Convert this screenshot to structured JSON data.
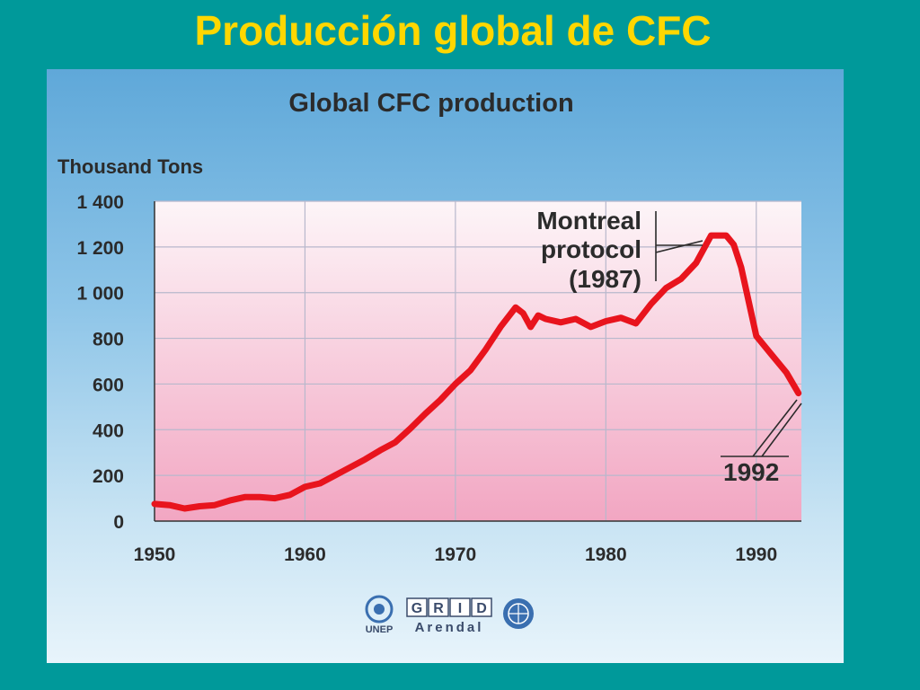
{
  "slide": {
    "title": "Producción global de CFC"
  },
  "chart_data": {
    "type": "line",
    "title": "Global CFC production",
    "ylabel": "Thousand Tons",
    "xlabel": "",
    "xlim": [
      1950,
      1993
    ],
    "ylim": [
      0,
      1400
    ],
    "x_ticks": [
      1950,
      1960,
      1970,
      1980,
      1990
    ],
    "x_tick_labels": [
      "1950",
      "1960",
      "1970",
      "1980",
      "1990"
    ],
    "y_ticks": [
      0,
      200,
      400,
      600,
      800,
      1000,
      1200,
      1400
    ],
    "y_tick_labels": [
      "0",
      "200",
      "400",
      "600",
      "800",
      "1 000",
      "1 200",
      "1 400"
    ],
    "grid": true,
    "series": [
      {
        "color": "#e8141d",
        "x": [
          1950,
          1951,
          1952,
          1953,
          1954,
          1955,
          1956,
          1957,
          1958,
          1959,
          1960,
          1961,
          1962,
          1963,
          1964,
          1965,
          1966,
          1967,
          1968,
          1969,
          1970,
          1971,
          1972,
          1973,
          1974,
          1974.5,
          1975,
          1975.5,
          1976,
          1977,
          1978,
          1979,
          1980,
          1981,
          1982,
          1983,
          1984,
          1985,
          1986,
          1987,
          1988,
          1988.5,
          1989,
          1990,
          1991,
          1992,
          1992.8
        ],
        "y": [
          75,
          70,
          55,
          65,
          70,
          90,
          105,
          105,
          100,
          115,
          150,
          165,
          200,
          235,
          270,
          310,
          345,
          405,
          470,
          530,
          600,
          660,
          750,
          850,
          935,
          910,
          850,
          900,
          885,
          870,
          885,
          850,
          875,
          890,
          865,
          950,
          1020,
          1060,
          1130,
          1250,
          1250,
          1210,
          1110,
          810,
          730,
          650,
          560
        ]
      }
    ],
    "annotations": [
      {
        "lines": [
          "Montreal",
          "protocol",
          "(1987)"
        ],
        "x": 1987,
        "y": 1250
      },
      {
        "lines": [
          "1992"
        ],
        "x": 1992.8,
        "y": 560
      }
    ]
  },
  "logos": {
    "unep_label": "UNEP",
    "grid_letters": [
      "G",
      "R",
      "I",
      "D"
    ],
    "arendal_label": "Arendal"
  },
  "colors": {
    "background": "#00999a",
    "slide_title": "#ffd700",
    "line": "#e8141d",
    "grid": "#b8b8cc"
  }
}
